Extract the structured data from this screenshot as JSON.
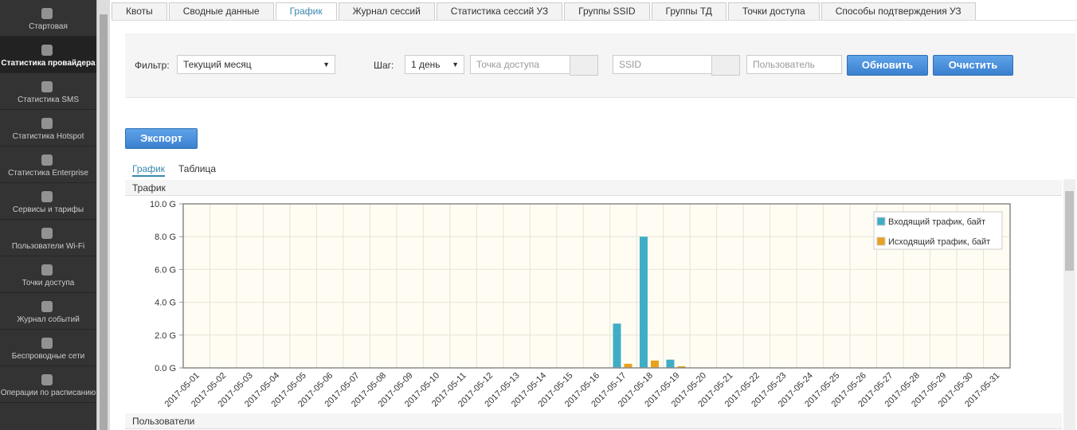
{
  "sidebar": {
    "items": [
      "Стартовая",
      "Статистика провайдера",
      "Статистика SMS",
      "Статистика Hotspot",
      "Статистика Enterprise",
      "Сервисы и тарифы",
      "Пользователи Wi-Fi",
      "Точки доступа",
      "Журнал событий",
      "Беспроводные сети",
      "Операции по расписанию"
    ]
  },
  "tabs": [
    "Квоты",
    "Сводные данные",
    "График",
    "Журнал сессий",
    "Статистика сессий УЗ",
    "Группы SSID",
    "Группы ТД",
    "Точки доступа",
    "Способы подтверждения УЗ"
  ],
  "filter": {
    "filter_label": "Фильтр:",
    "period": "Текущий месяц",
    "step_label": "Шаг:",
    "step": "1 день",
    "access_point_placeholder": "Точка доступа",
    "ssid_placeholder": "SSID",
    "user_placeholder": "Пользователь",
    "refresh": "Обновить",
    "clear": "Очистить"
  },
  "export": "Экспорт",
  "view_tabs": [
    "График",
    "Таблица"
  ],
  "panels": {
    "traffic": "Трафик",
    "users": "Пользователи"
  },
  "chart_data": {
    "type": "bar",
    "categories": [
      "2017-05-01",
      "2017-05-02",
      "2017-05-03",
      "2017-05-04",
      "2017-05-05",
      "2017-05-06",
      "2017-05-07",
      "2017-05-08",
      "2017-05-09",
      "2017-05-10",
      "2017-05-11",
      "2017-05-12",
      "2017-05-13",
      "2017-05-14",
      "2017-05-15",
      "2017-05-16",
      "2017-05-17",
      "2017-05-18",
      "2017-05-19",
      "2017-05-20",
      "2017-05-21",
      "2017-05-22",
      "2017-05-23",
      "2017-05-24",
      "2017-05-25",
      "2017-05-26",
      "2017-05-27",
      "2017-05-28",
      "2017-05-29",
      "2017-05-30",
      "2017-05-31"
    ],
    "series": [
      {
        "name": "Входящий трафик, байт",
        "color": "#3fadc5",
        "values": [
          0,
          0,
          0,
          0,
          0,
          0,
          0,
          0,
          0,
          0,
          0,
          0,
          0,
          0,
          0,
          0,
          2.7,
          8.0,
          0.5,
          0,
          0,
          0,
          0,
          0,
          0,
          0,
          0,
          0,
          0,
          0,
          0
        ]
      },
      {
        "name": "Исходящий трафик, байт",
        "color": "#e8a21e",
        "values": [
          0,
          0,
          0,
          0,
          0,
          0,
          0,
          0,
          0,
          0,
          0,
          0,
          0,
          0,
          0,
          0,
          0.25,
          0.45,
          0.1,
          0,
          0,
          0,
          0,
          0,
          0,
          0,
          0,
          0,
          0,
          0,
          0
        ]
      }
    ],
    "ylim": [
      0,
      10
    ],
    "yticks": [
      {
        "value": 0,
        "label": "0.0 G"
      },
      {
        "value": 2,
        "label": "2.0 G"
      },
      {
        "value": 4,
        "label": "4.0 G"
      },
      {
        "value": 6,
        "label": "6.0 G"
      },
      {
        "value": 8,
        "label": "8.0 G"
      },
      {
        "value": 10,
        "label": "10.0 G"
      }
    ],
    "grid": true,
    "legend": "top-right"
  }
}
